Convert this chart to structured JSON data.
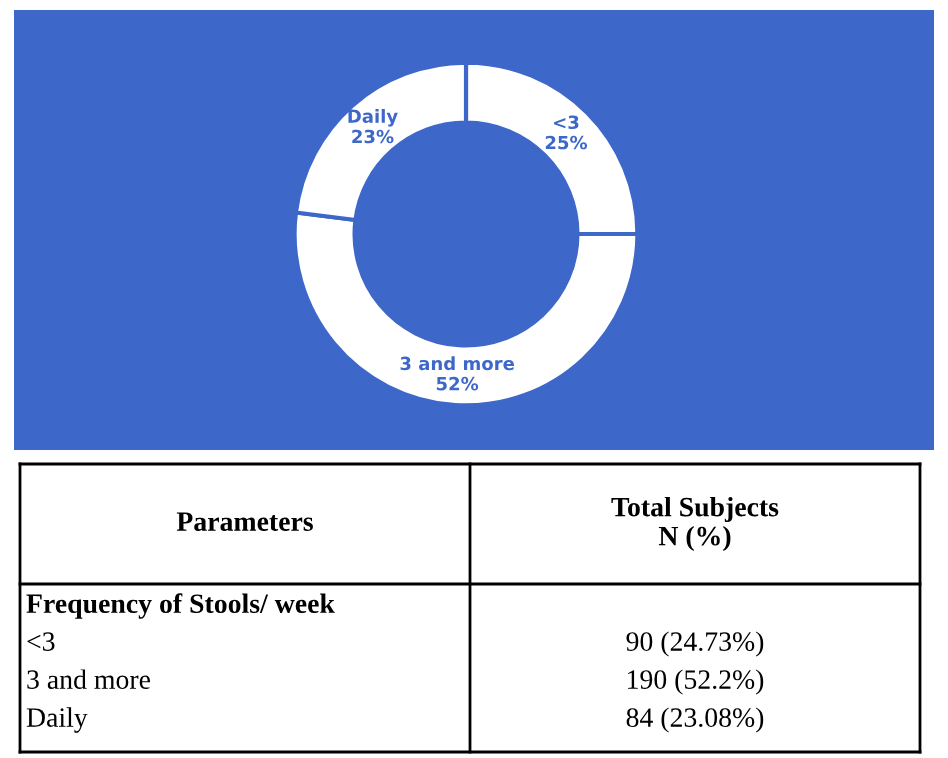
{
  "chart_data": {
    "type": "donut",
    "categories": [
      "<3",
      "3 and more",
      "Daily"
    ],
    "values": [
      25,
      52,
      23
    ],
    "colors": [
      "#ffffff",
      "#ffffff",
      "#ffffff"
    ],
    "value_labels": [
      "25%",
      "52%",
      "23%"
    ],
    "legend": false,
    "annotations": [
      "Parameters",
      "Total Subjects\nN (%)",
      "Frequency of Stools/ week",
      "<3",
      "90 (24.73%)",
      "3 and more",
      "190 (52.2%)",
      "Daily",
      "84 (23.08%)"
    ]
  }
}
